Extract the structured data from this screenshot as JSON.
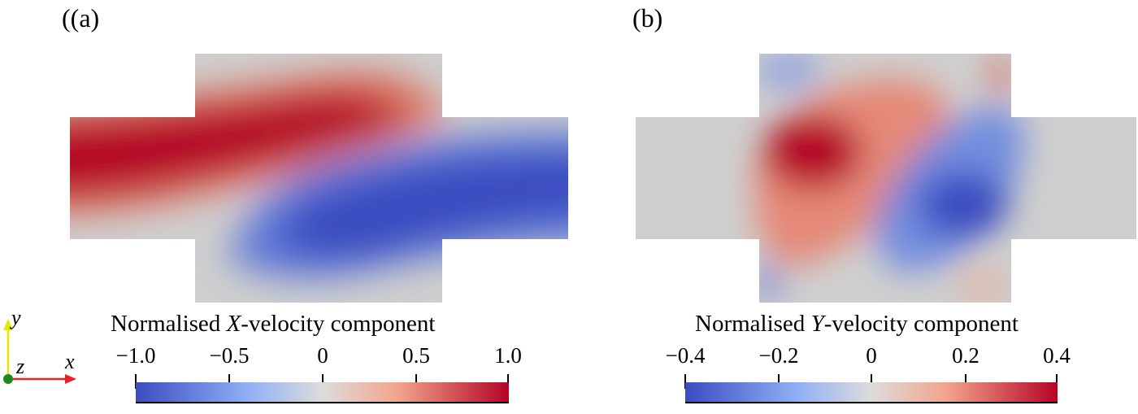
{
  "panels": [
    {
      "label": "(a)",
      "colorbar": {
        "title_prefix": "Normalised ",
        "title_var": "X",
        "title_suffix": "-velocity component",
        "ticks": [
          "−1.0",
          "−0.5",
          "0",
          "0.5",
          "1.0"
        ],
        "range": [
          -1.0,
          1.0
        ],
        "colors": [
          "#3b4cc0",
          "#dddcdc",
          "#b40426"
        ]
      }
    },
    {
      "label": "(b)",
      "colorbar": {
        "title_prefix": "Normalised ",
        "title_var": "Y",
        "title_suffix": "-velocity component",
        "ticks": [
          "−0.4",
          "−0.2",
          "0",
          "0.2",
          "0.4"
        ],
        "range": [
          -0.4,
          0.4
        ],
        "colors": [
          "#3b4cc0",
          "#dddcdc",
          "#b40426"
        ]
      }
    }
  ],
  "axes_triad": {
    "y": "y",
    "z": "z",
    "x": "x",
    "colors": {
      "y": "#e6e600",
      "x": "#e8202a",
      "origin": "#1a8a1a"
    }
  }
}
